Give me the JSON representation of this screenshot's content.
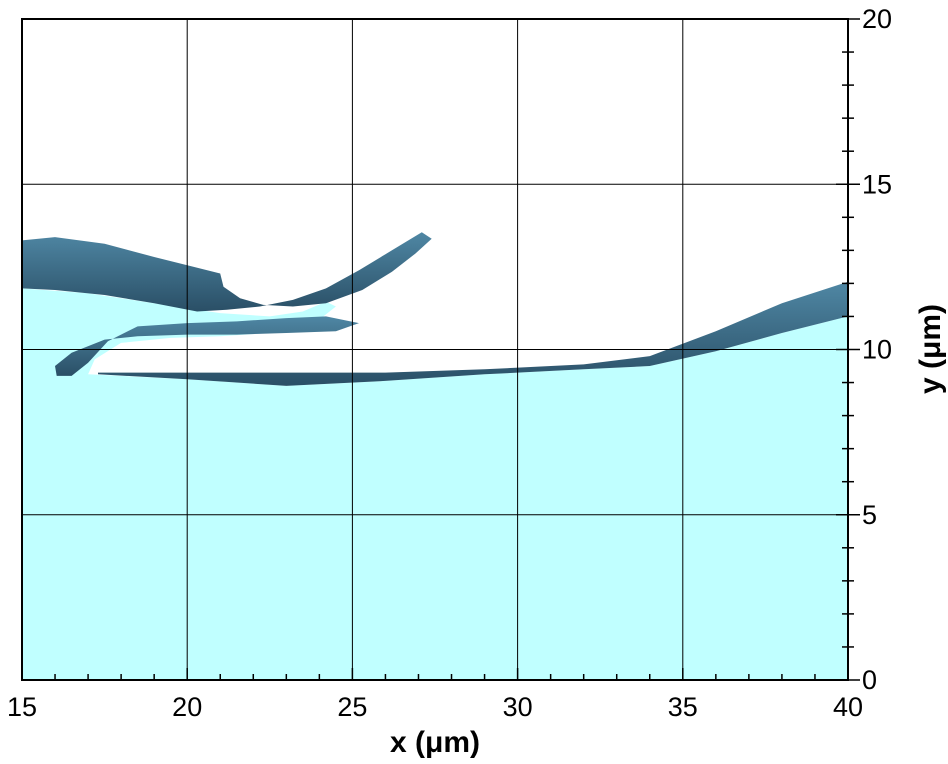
{
  "chart_data": {
    "type": "area",
    "title": "",
    "xlabel": "x (μm)",
    "ylabel": "y (μm)",
    "xlim": [
      15,
      40
    ],
    "ylim": [
      0,
      20
    ],
    "grid": true,
    "y_axis_side": "right",
    "x_ticks": [
      15,
      20,
      25,
      30,
      35,
      40
    ],
    "y_ticks": [
      0,
      5,
      10,
      15,
      20
    ],
    "colors": {
      "liquid": "#c0ffff",
      "surface": "#4f87a4",
      "surface_dark": "#2a4f66",
      "grid": "#000000"
    },
    "liquid_boundary": {
      "x": [
        15.0,
        17.0,
        19.0,
        21.0,
        22.5,
        23.5,
        24.2,
        24.5,
        23.8,
        22.5,
        21.0,
        19.5,
        18.0,
        17.2,
        17.0,
        20.0,
        23.0,
        26.0,
        29.0,
        32.0,
        34.0,
        36.0,
        38.0,
        40.0,
        40.0,
        15.0
      ],
      "y": [
        11.85,
        11.7,
        11.4,
        11.1,
        11.0,
        11.15,
        11.45,
        11.3,
        10.75,
        10.5,
        10.4,
        10.35,
        10.2,
        9.7,
        9.25,
        9.1,
        8.9,
        9.05,
        9.25,
        9.4,
        9.5,
        9.95,
        10.5,
        11.0,
        0.0,
        0.0
      ]
    },
    "upper_sheet": {
      "x": [
        15.0,
        16.0,
        17.5,
        19.0,
        20.2,
        21.0,
        21.1,
        21.6,
        22.3,
        23.2,
        24.2,
        25.3,
        26.2,
        26.9,
        27.4,
        27.1,
        26.2,
        25.2,
        24.2,
        23.2,
        22.2,
        21.2,
        20.3,
        19.0,
        17.5,
        16.0,
        15.0
      ],
      "y": [
        13.3,
        13.4,
        13.2,
        12.8,
        12.5,
        12.3,
        11.9,
        11.55,
        11.35,
        11.3,
        11.4,
        11.8,
        12.35,
        12.9,
        13.35,
        13.55,
        13.0,
        12.4,
        11.85,
        11.5,
        11.3,
        11.2,
        11.15,
        11.4,
        11.65,
        11.8,
        11.85
      ]
    },
    "filament": {
      "x": [
        16.0,
        16.5,
        17.5,
        18.5,
        20.0,
        21.5,
        23.0,
        24.5,
        25.2,
        24.2,
        23.0,
        21.5,
        20.0,
        18.5,
        17.6,
        17.0,
        16.5,
        16.05
      ],
      "y": [
        9.5,
        9.9,
        10.3,
        10.4,
        10.45,
        10.45,
        10.5,
        10.55,
        10.8,
        11.0,
        10.95,
        10.85,
        10.8,
        10.7,
        10.25,
        9.6,
        9.2,
        9.2
      ]
    },
    "lower_sheet": {
      "x": [
        17.3,
        20.0,
        23.0,
        26.0,
        29.0,
        32.0,
        34.0,
        36.0,
        38.0,
        40.0,
        40.0,
        38.0,
        36.0,
        34.0,
        32.0,
        29.0,
        26.0,
        23.0,
        20.0,
        17.3
      ],
      "y": [
        9.25,
        9.1,
        8.9,
        9.05,
        9.25,
        9.4,
        9.5,
        9.95,
        10.5,
        11.0,
        12.05,
        11.4,
        10.55,
        9.8,
        9.55,
        9.4,
        9.3,
        9.3,
        9.3,
        9.3
      ]
    }
  }
}
